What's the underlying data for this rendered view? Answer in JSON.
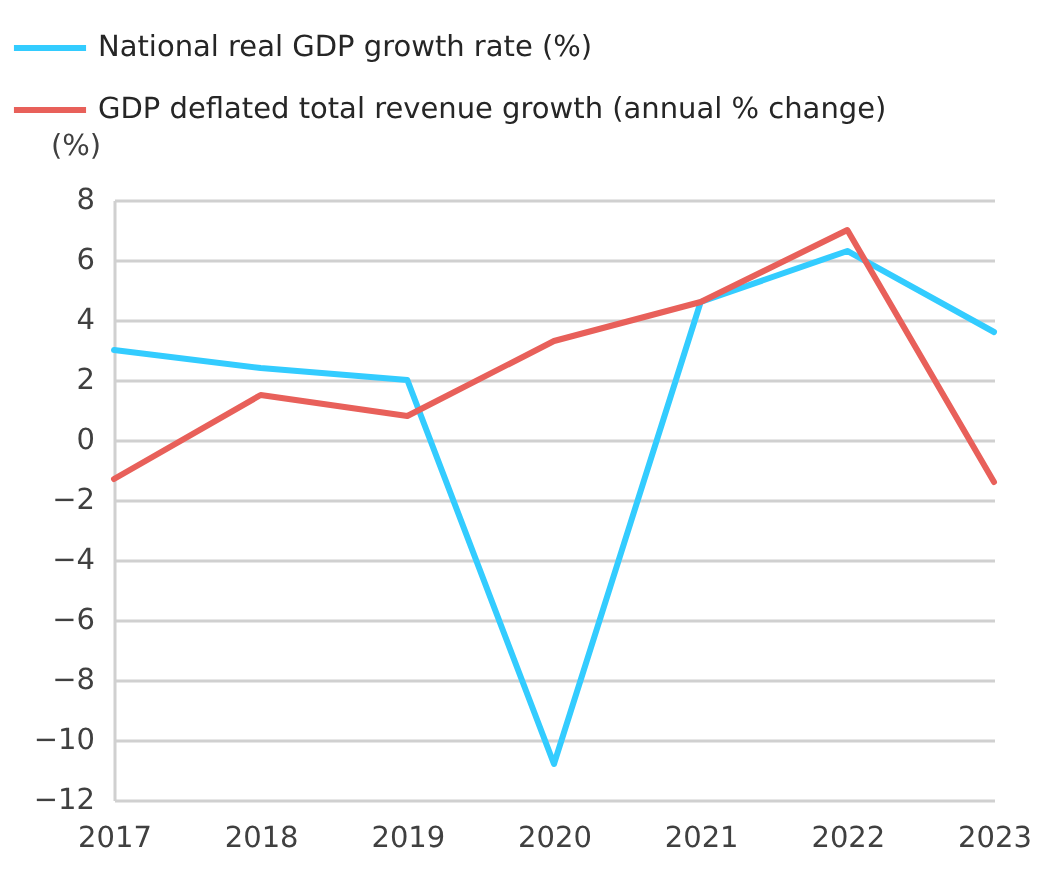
{
  "chart_data": {
    "type": "line",
    "ylabel": "(%)",
    "categories": [
      "2017",
      "2018",
      "2019",
      "2020",
      "2021",
      "2022",
      "2023"
    ],
    "series": [
      {
        "name": "National real GDP growth rate (%)",
        "color": "#33ccff",
        "values": [
          3.0,
          2.4,
          2.0,
          -10.8,
          4.6,
          6.3,
          3.6
        ]
      },
      {
        "name": "GDP deflated total revenue growth (annual % change)",
        "color": "#e8605a",
        "values": [
          -1.3,
          1.5,
          0.8,
          3.3,
          4.6,
          7.0,
          -1.4
        ]
      }
    ],
    "ylim": [
      -12,
      8
    ],
    "yticks": [
      -12,
      -10,
      -8,
      -6,
      -4,
      -2,
      0,
      2,
      4,
      6,
      8
    ],
    "grid": "y",
    "legend": "top left",
    "marker": "none",
    "line_style": "solid"
  }
}
